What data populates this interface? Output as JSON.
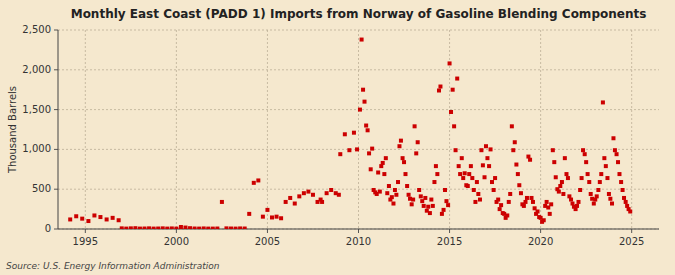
{
  "chart_data": {
    "type": "scatter",
    "title": "Monthly East Coast (PADD 1) Imports from Norway of Gasoline Blending Components",
    "ylabel": "Thousand Barrels",
    "source": "Source: U.S. Energy Information Administration",
    "color": "#cc0000",
    "marker": "square",
    "grid": true,
    "xlim": [
      1993.5,
      2026.5
    ],
    "ylim": [
      0,
      2500
    ],
    "xticks": [
      1995,
      2000,
      2005,
      2010,
      2015,
      2020,
      2025
    ],
    "yticks": [
      0,
      500,
      {
        "value": 1000,
        "label": "1,000"
      },
      {
        "value": 1500,
        "label": "1,500"
      },
      {
        "value": 2000,
        "label": "2,000"
      },
      {
        "value": 2500,
        "label": "2,500"
      }
    ],
    "x": [
      1994.17,
      1994.5,
      1994.83,
      1995.17,
      1995.5,
      1995.83,
      1996.17,
      1996.5,
      1996.83,
      1997.0,
      1997.25,
      1997.5,
      1997.75,
      1998.0,
      1998.25,
      1998.5,
      1998.75,
      1999.0,
      1999.25,
      1999.5,
      1999.75,
      2000.0,
      2000.25,
      2000.5,
      2000.75,
      2001.0,
      2001.25,
      2001.5,
      2001.75,
      2002.0,
      2002.25,
      2002.5,
      2002.75,
      2003.0,
      2003.25,
      2003.5,
      2003.75,
      2004.0,
      2004.25,
      2004.5,
      2004.75,
      2005.0,
      2005.25,
      2005.5,
      2005.75,
      2006.0,
      2006.25,
      2006.5,
      2006.75,
      2007.0,
      2007.25,
      2007.5,
      2007.75,
      2007.92,
      2008.0,
      2008.25,
      2008.5,
      2008.75,
      2008.92,
      2009.0,
      2009.25,
      2009.5,
      2009.75,
      2009.92,
      2010.08,
      2010.17,
      2010.25,
      2010.33,
      2010.42,
      2010.5,
      2010.58,
      2010.67,
      2010.75,
      2010.83,
      2010.92,
      2011.0,
      2011.08,
      2011.17,
      2011.25,
      2011.33,
      2011.42,
      2011.5,
      2011.58,
      2011.67,
      2011.75,
      2011.83,
      2011.92,
      2012.0,
      2012.08,
      2012.17,
      2012.25,
      2012.33,
      2012.42,
      2012.5,
      2012.58,
      2012.67,
      2012.75,
      2012.83,
      2012.92,
      2013.0,
      2013.08,
      2013.17,
      2013.25,
      2013.33,
      2013.42,
      2013.5,
      2013.58,
      2013.67,
      2013.75,
      2013.83,
      2013.92,
      2014.0,
      2014.08,
      2014.17,
      2014.25,
      2014.33,
      2014.42,
      2014.5,
      2014.58,
      2014.67,
      2014.75,
      2014.83,
      2014.92,
      2015.0,
      2015.08,
      2015.17,
      2015.25,
      2015.33,
      2015.42,
      2015.5,
      2015.58,
      2015.67,
      2015.75,
      2015.83,
      2015.92,
      2016.0,
      2016.08,
      2016.17,
      2016.25,
      2016.33,
      2016.42,
      2016.5,
      2016.58,
      2016.67,
      2016.75,
      2016.83,
      2016.92,
      2017.0,
      2017.08,
      2017.17,
      2017.25,
      2017.33,
      2017.42,
      2017.5,
      2017.58,
      2017.67,
      2017.75,
      2017.83,
      2017.92,
      2018.0,
      2018.08,
      2018.17,
      2018.25,
      2018.33,
      2018.42,
      2018.5,
      2018.58,
      2018.67,
      2018.75,
      2018.83,
      2018.92,
      2019.0,
      2019.08,
      2019.17,
      2019.25,
      2019.33,
      2019.42,
      2019.5,
      2019.58,
      2019.67,
      2019.75,
      2019.83,
      2019.92,
      2020.0,
      2020.08,
      2020.17,
      2020.25,
      2020.33,
      2020.42,
      2020.5,
      2020.58,
      2020.67,
      2020.75,
      2020.83,
      2020.92,
      2021.0,
      2021.08,
      2021.17,
      2021.25,
      2021.33,
      2021.42,
      2021.5,
      2021.58,
      2021.67,
      2021.75,
      2021.83,
      2021.92,
      2022.0,
      2022.08,
      2022.17,
      2022.25,
      2022.33,
      2022.42,
      2022.5,
      2022.58,
      2022.67,
      2022.75,
      2022.83,
      2022.92,
      2023.0,
      2023.08,
      2023.17,
      2023.25,
      2023.33,
      2023.42,
      2023.5,
      2023.58,
      2023.67,
      2023.75,
      2023.83,
      2023.92,
      2024.0,
      2024.08,
      2024.17,
      2024.25,
      2024.33,
      2024.42,
      2024.5,
      2024.58,
      2024.67,
      2024.75,
      2024.83,
      2024.92
    ],
    "values": [
      120,
      160,
      130,
      100,
      170,
      150,
      120,
      140,
      110,
      8,
      5,
      8,
      10,
      5,
      6,
      8,
      5,
      6,
      8,
      5,
      7,
      5,
      25,
      18,
      10,
      6,
      5,
      7,
      5,
      5,
      6,
      340,
      8,
      6,
      5,
      7,
      6,
      190,
      580,
      610,
      155,
      240,
      145,
      155,
      135,
      340,
      390,
      320,
      410,
      450,
      470,
      430,
      340,
      370,
      340,
      450,
      490,
      450,
      430,
      940,
      1190,
      990,
      1210,
      1000,
      1500,
      2380,
      1750,
      1600,
      1300,
      1240,
      950,
      750,
      1010,
      490,
      460,
      440,
      710,
      470,
      790,
      830,
      690,
      890,
      450,
      540,
      370,
      400,
      320,
      490,
      430,
      590,
      1040,
      1110,
      890,
      840,
      690,
      540,
      430,
      380,
      310,
      370,
      1290,
      950,
      1090,
      490,
      410,
      350,
      290,
      390,
      230,
      280,
      200,
      370,
      290,
      590,
      790,
      690,
      1740,
      1790,
      190,
      240,
      490,
      350,
      300,
      2080,
      1470,
      1750,
      1290,
      990,
      1890,
      790,
      690,
      890,
      640,
      700,
      550,
      540,
      690,
      790,
      640,
      490,
      340,
      590,
      440,
      370,
      990,
      800,
      650,
      1040,
      890,
      790,
      1000,
      590,
      490,
      640,
      340,
      370,
      250,
      300,
      200,
      190,
      140,
      170,
      340,
      440,
      1290,
      990,
      1090,
      810,
      690,
      550,
      450,
      310,
      290,
      340,
      390,
      910,
      870,
      390,
      340,
      260,
      190,
      220,
      150,
      140,
      90,
      110,
      290,
      340,
      270,
      190,
      310,
      990,
      840,
      650,
      500,
      470,
      540,
      590,
      440,
      890,
      690,
      640,
      410,
      370,
      320,
      280,
      250,
      290,
      340,
      490,
      640,
      990,
      940,
      840,
      690,
      590,
      440,
      380,
      320,
      370,
      410,
      490,
      590,
      690,
      1590,
      890,
      790,
      640,
      440,
      380,
      320,
      1140,
      990,
      940,
      840,
      690,
      590,
      490,
      390,
      340,
      290,
      250,
      220
    ]
  }
}
